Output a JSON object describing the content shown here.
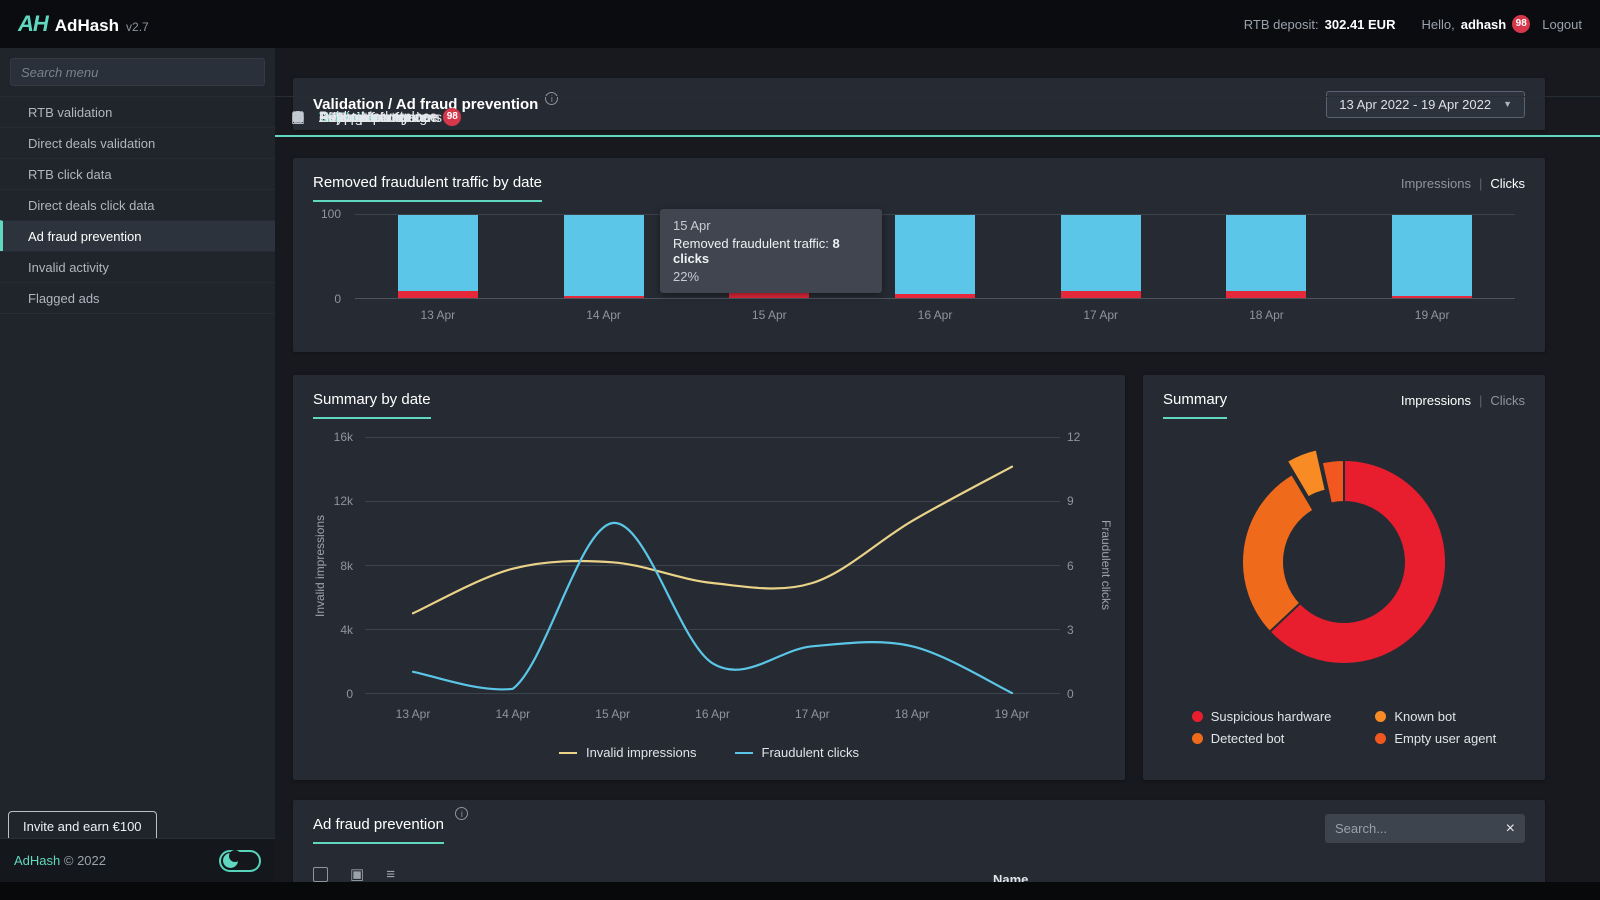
{
  "accent": "#5fd8bf",
  "topbar": {
    "logo_text": "AH",
    "app_name": "AdHash",
    "version": "v2.7",
    "rtb_deposit_label": "RTB deposit:",
    "rtb_deposit_value": "302.41 EUR",
    "greeting_label": "Hello,",
    "username": "adhash",
    "notification_count": "98",
    "logout_label": "Logout"
  },
  "sidebar": {
    "search_placeholder": "Search menu",
    "items": [
      {
        "label": "Launch",
        "type": "main",
        "icon": "launch-icon",
        "glyph": "↥"
      },
      {
        "label": "Public Marketplace",
        "type": "main",
        "icon": "marketplace-icon",
        "glyph": "⊞",
        "divider": true
      },
      {
        "label": "Overview",
        "type": "main",
        "icon": "overview-icon",
        "glyph": "◔"
      },
      {
        "label": "Validation",
        "type": "main",
        "icon": "validation-icon",
        "glyph": "∿",
        "teal": true
      },
      {
        "label": "RTB validation",
        "type": "sub"
      },
      {
        "label": "Direct deals validation",
        "type": "sub"
      },
      {
        "label": "RTB click data",
        "type": "sub"
      },
      {
        "label": "Direct deals click data",
        "type": "sub"
      },
      {
        "label": "Ad fraud prevention",
        "type": "sub",
        "active": true
      },
      {
        "label": "Invalid activity",
        "type": "sub"
      },
      {
        "label": "Flagged ads",
        "type": "sub"
      },
      {
        "label": "RTB performance",
        "type": "main",
        "icon": "rtb-performance-icon",
        "glyph": "◴"
      },
      {
        "label": "Direct performance",
        "type": "main",
        "icon": "direct-performance-icon",
        "glyph": "☉"
      },
      {
        "label": "Ads and campaigns",
        "type": "main",
        "icon": "ads-campaigns-icon",
        "glyph": "▦"
      },
      {
        "label": "Payments",
        "type": "main",
        "icon": "payments-icon",
        "glyph": "⊙"
      },
      {
        "label": "AdHash ecosystem",
        "type": "main",
        "icon": "ecosystem-icon",
        "glyph": "♁"
      },
      {
        "label": "AdHash platform",
        "type": "main",
        "icon": "platform-icon",
        "glyph": "≣",
        "badge": "98"
      },
      {
        "label": "Settings",
        "type": "main",
        "icon": "settings-icon",
        "glyph": "⚙"
      },
      {
        "label": "Support centre",
        "type": "main",
        "icon": "support-icon",
        "glyph": "✉"
      }
    ],
    "invite_button": "Invite and earn €100",
    "footer_brand": "AdHash",
    "footer_copyright": "© 2022"
  },
  "breadcrumb": {
    "title": "Validation / Ad fraud prevention",
    "date_range": "13 Apr 2022 - 19 Apr 2022"
  },
  "bar_card": {
    "title": "Removed fraudulent traffic by date",
    "toggle": {
      "impressions": "Impressions",
      "clicks": "Clicks",
      "selected": "Clicks"
    },
    "tooltip": {
      "date": "15 Apr",
      "label": "Removed fraudulent traffic:",
      "value": "8 clicks",
      "percent": "22%"
    }
  },
  "line_card": {
    "title": "Summary by date"
  },
  "donut_card": {
    "title": "Summary",
    "toggle": {
      "impressions": "Impressions",
      "clicks": "Clicks",
      "selected": "Impressions"
    }
  },
  "table_card": {
    "title": "Ad fraud prevention",
    "search_placeholder": "Search...",
    "partial_column_header": "Name"
  },
  "chart_data": [
    {
      "id": "removed-fraudulent-traffic-by-date",
      "type": "bar",
      "title": "Removed fraudulent traffic by date",
      "mode": "Clicks",
      "stacked_percent": true,
      "bar_total": 100,
      "categories": [
        "13 Apr",
        "14 Apr",
        "15 Apr",
        "16 Apr",
        "17 Apr",
        "18 Apr",
        "19 Apr"
      ],
      "removed_pct": [
        9,
        3,
        22,
        5,
        8,
        9,
        3
      ],
      "colors": {
        "clean": "#5bc6e8",
        "removed": "#e5283a"
      },
      "ylim": [
        0,
        100
      ],
      "yticks": [
        {
          "label": "100",
          "frac": 0
        },
        {
          "label": "0",
          "frac": 1
        }
      ]
    },
    {
      "id": "summary-by-date",
      "type": "line",
      "title": "Summary by date",
      "x": [
        "13 Apr",
        "14 Apr",
        "15 Apr",
        "16 Apr",
        "17 Apr",
        "18 Apr",
        "19 Apr"
      ],
      "series": [
        {
          "name": "Invalid impressions",
          "color": "#ead389",
          "axis": "left",
          "values": [
            5000,
            7800,
            8200,
            6900,
            6900,
            10800,
            14200
          ]
        },
        {
          "name": "Fraudulent clicks",
          "color": "#5bc6e8",
          "axis": "right",
          "values": [
            1,
            0.2,
            8,
            1.4,
            2.2,
            2.2,
            0
          ]
        }
      ],
      "left_axis": {
        "label": "Invalid impressions",
        "max": 16000,
        "ticks": [
          "16k",
          "12k",
          "8k",
          "4k",
          "0"
        ]
      },
      "right_axis": {
        "label": "Fraudulent clicks",
        "max": 12,
        "ticks": [
          "12",
          "9",
          "6",
          "3",
          "0"
        ]
      },
      "grid": true,
      "legend_position": "bottom"
    },
    {
      "id": "summary-donut",
      "type": "pie",
      "title": "Summary",
      "mode": "Impressions",
      "slices": [
        {
          "label": "Suspicious hardware",
          "color": "#e81e2e",
          "pct": 63
        },
        {
          "label": "Detected bot",
          "color": "#ef6a1a",
          "pct": 28.5
        },
        {
          "label": "Known bot",
          "color": "#f98b25",
          "pct": 5,
          "exploded": true
        },
        {
          "label": "Empty user agent",
          "color": "#f2571f",
          "pct": 3.5
        }
      ]
    }
  ]
}
